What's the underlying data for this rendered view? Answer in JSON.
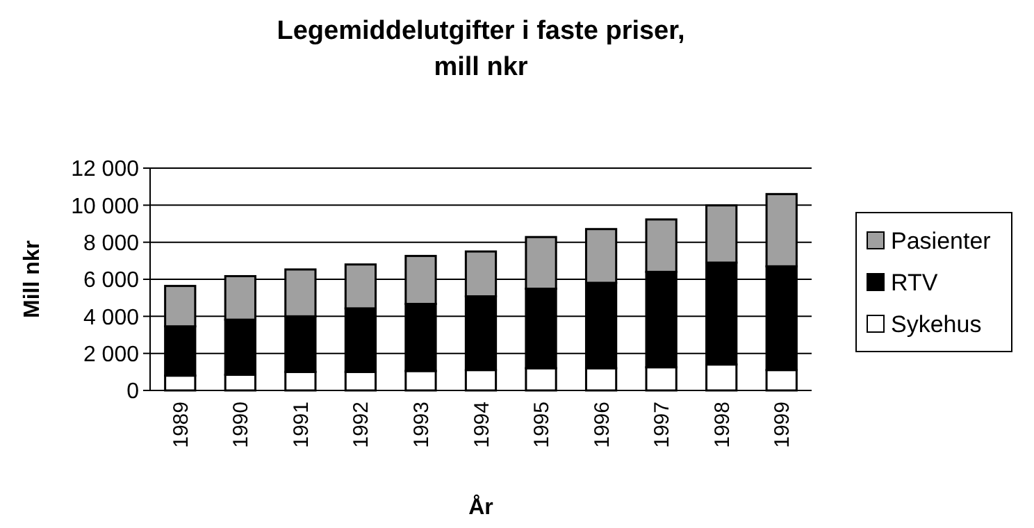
{
  "chart_data": {
    "type": "bar",
    "title": "Legemiddelutgifter i faste priser, mill nkr",
    "xlabel": "År",
    "ylabel": "Mill nkr",
    "categories": [
      "1989",
      "1990",
      "1991",
      "1992",
      "1993",
      "1994",
      "1995",
      "1996",
      "1997",
      "1998",
      "1999"
    ],
    "stacked": true,
    "series": [
      {
        "name": "Sykehus",
        "color": "#ffffff",
        "values": [
          800,
          850,
          1000,
          1000,
          1050,
          1100,
          1200,
          1200,
          1250,
          1400,
          1100
        ]
      },
      {
        "name": "RTV",
        "color": "#000000",
        "values": [
          2660,
          2970,
          3000,
          3430,
          3620,
          3980,
          4290,
          4610,
          5150,
          5500,
          5600
        ]
      },
      {
        "name": "Pasienter",
        "color": "#a0a0a0",
        "values": [
          2180,
          2350,
          2530,
          2370,
          2590,
          2420,
          2790,
          2900,
          2830,
          3090,
          3900
        ]
      }
    ],
    "ylim": [
      0,
      12000
    ],
    "yticks": [
      {
        "value": 0,
        "label": "0"
      },
      {
        "value": 2000,
        "label": "2 000"
      },
      {
        "value": 4000,
        "label": "4 000"
      },
      {
        "value": 6000,
        "label": "6 000"
      },
      {
        "value": 8000,
        "label": "8 000"
      },
      {
        "value": 10000,
        "label": "10 000"
      },
      {
        "value": 12000,
        "label": "12 000"
      }
    ],
    "grid": "y",
    "legend": "right"
  }
}
